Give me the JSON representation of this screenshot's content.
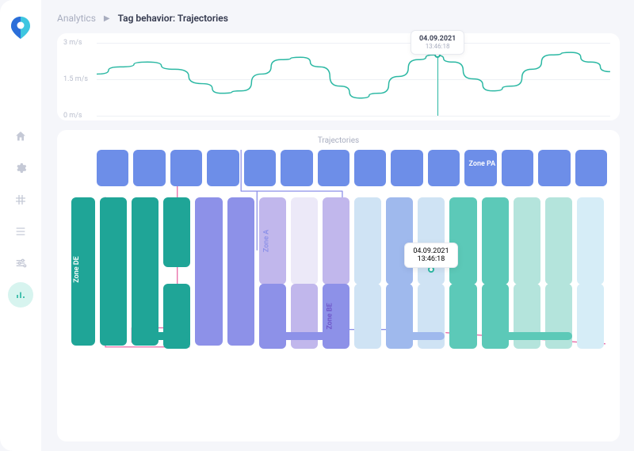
{
  "breadcrumb": {
    "root": "Analytics",
    "leaf": "Tag behavior: Trajectories"
  },
  "speed_chart": {
    "type": "line",
    "yticks": [
      {
        "label": "3 m/s",
        "value": 3
      },
      {
        "label": "1.5 m/s",
        "value": 1.5
      },
      {
        "label": "0 m/s",
        "value": 0
      }
    ],
    "ylim": [
      0,
      3.2
    ],
    "points": [
      [
        0,
        1.7
      ],
      [
        30,
        2.0
      ],
      [
        65,
        2.2
      ],
      [
        100,
        1.9
      ],
      [
        135,
        1.3
      ],
      [
        160,
        0.9
      ],
      [
        185,
        1.0
      ],
      [
        210,
        1.7
      ],
      [
        235,
        2.3
      ],
      [
        260,
        2.4
      ],
      [
        285,
        2.0
      ],
      [
        310,
        1.2
      ],
      [
        335,
        0.7
      ],
      [
        360,
        0.9
      ],
      [
        385,
        1.6
      ],
      [
        410,
        2.3
      ],
      [
        430,
        2.5
      ],
      [
        455,
        2.2
      ],
      [
        480,
        1.5
      ],
      [
        505,
        1.0
      ],
      [
        530,
        1.2
      ],
      [
        555,
        1.9
      ],
      [
        580,
        2.5
      ],
      [
        605,
        2.6
      ],
      [
        630,
        2.2
      ],
      [
        655,
        1.8
      ]
    ],
    "line_color": "#2bb8a3",
    "line_width": 1.5,
    "grid_color": "#eef0f5",
    "tooltip": {
      "date": "04.09.2021",
      "time": "13:46:18",
      "x_position": 430
    }
  },
  "trajectory_map": {
    "title": "Trajectories",
    "tooltip": {
      "date": "04.09.2021",
      "time": "13:46:18"
    },
    "labels": {
      "zone_pa": "Zone PA",
      "zone_de": "Zone DE",
      "zone_a": "Zone A",
      "zone_be": "Zone BE"
    },
    "top_row": {
      "count": 14,
      "color": "#6d8ee8",
      "pa_index": 10
    },
    "left_tall": {
      "color": "#1fa597"
    },
    "mid_blocks": [
      {
        "c": "#1fa597",
        "h": 1.7
      },
      {
        "c": "#1fa597",
        "h": 1.7
      },
      {
        "c": "#1fa597",
        "h": 0.8
      },
      {
        "c": "#8d91e8",
        "h": 1.7
      },
      {
        "c": "#8d91e8",
        "h": 1.7
      },
      {
        "c": "#c1b7ec",
        "h": 1.0,
        "label": "zone_a",
        "label_color": "#8d91e8"
      },
      {
        "c": "#ece9f8",
        "h": 1.0
      },
      {
        "c": "#c1b7ec",
        "h": 1.0
      },
      {
        "c": "#cfe3f4",
        "h": 1.0
      },
      {
        "c": "#9fb9ed",
        "h": 1.0
      },
      {
        "c": "#cfe3f4",
        "h": 1.0
      },
      {
        "c": "#5cc9b8",
        "h": 1.0
      },
      {
        "c": "#5cc9b8",
        "h": 1.0
      },
      {
        "c": "#b4e4dc",
        "h": 1.0
      },
      {
        "c": "#b4e4dc",
        "h": 1.0
      },
      {
        "c": "#d6edf7",
        "h": 1.0
      }
    ],
    "lower_mid_blocks": [
      {
        "c": "",
        "skip": true
      },
      {
        "c": "",
        "skip": true
      },
      {
        "c": "#1fa597"
      },
      {
        "c": "",
        "skip": true
      },
      {
        "c": "",
        "skip": true
      },
      {
        "c": "#8d91e8"
      },
      {
        "c": "#c1b7ec"
      },
      {
        "c": "#8d91e8",
        "label": "zone_be",
        "label_color": "#6d55c9"
      },
      {
        "c": "#cfe3f4"
      },
      {
        "c": "#9fb9ed"
      },
      {
        "c": "#cfe3f4"
      },
      {
        "c": "#5cc9b8"
      },
      {
        "c": "#5cc9b8"
      },
      {
        "c": "#b4e4dc"
      },
      {
        "c": "#b4e4dc"
      },
      {
        "c": "#d6edf7"
      }
    ],
    "bottom_bars": [
      {
        "start": 1,
        "span": 2,
        "c": "#1fa597"
      },
      {
        "start": 5,
        "span": 3,
        "c": "#8d91e8"
      },
      {
        "start": 9,
        "span": 2,
        "c": "#9fb9ed"
      },
      {
        "start": 12,
        "span": 3,
        "c": "#5cc9b8"
      }
    ],
    "trajectories": [
      {
        "color": "#e86aa6",
        "width": 1.3
      },
      {
        "color": "#8d91e8",
        "width": 1.3
      }
    ],
    "marker": {
      "col_index": 10
    }
  },
  "colors": {
    "text_muted": "#a8adbf",
    "text_dark": "#33384d",
    "card_bg": "#ffffff",
    "page_bg": "#f5f6fa",
    "accent": "#2bb8a3"
  }
}
